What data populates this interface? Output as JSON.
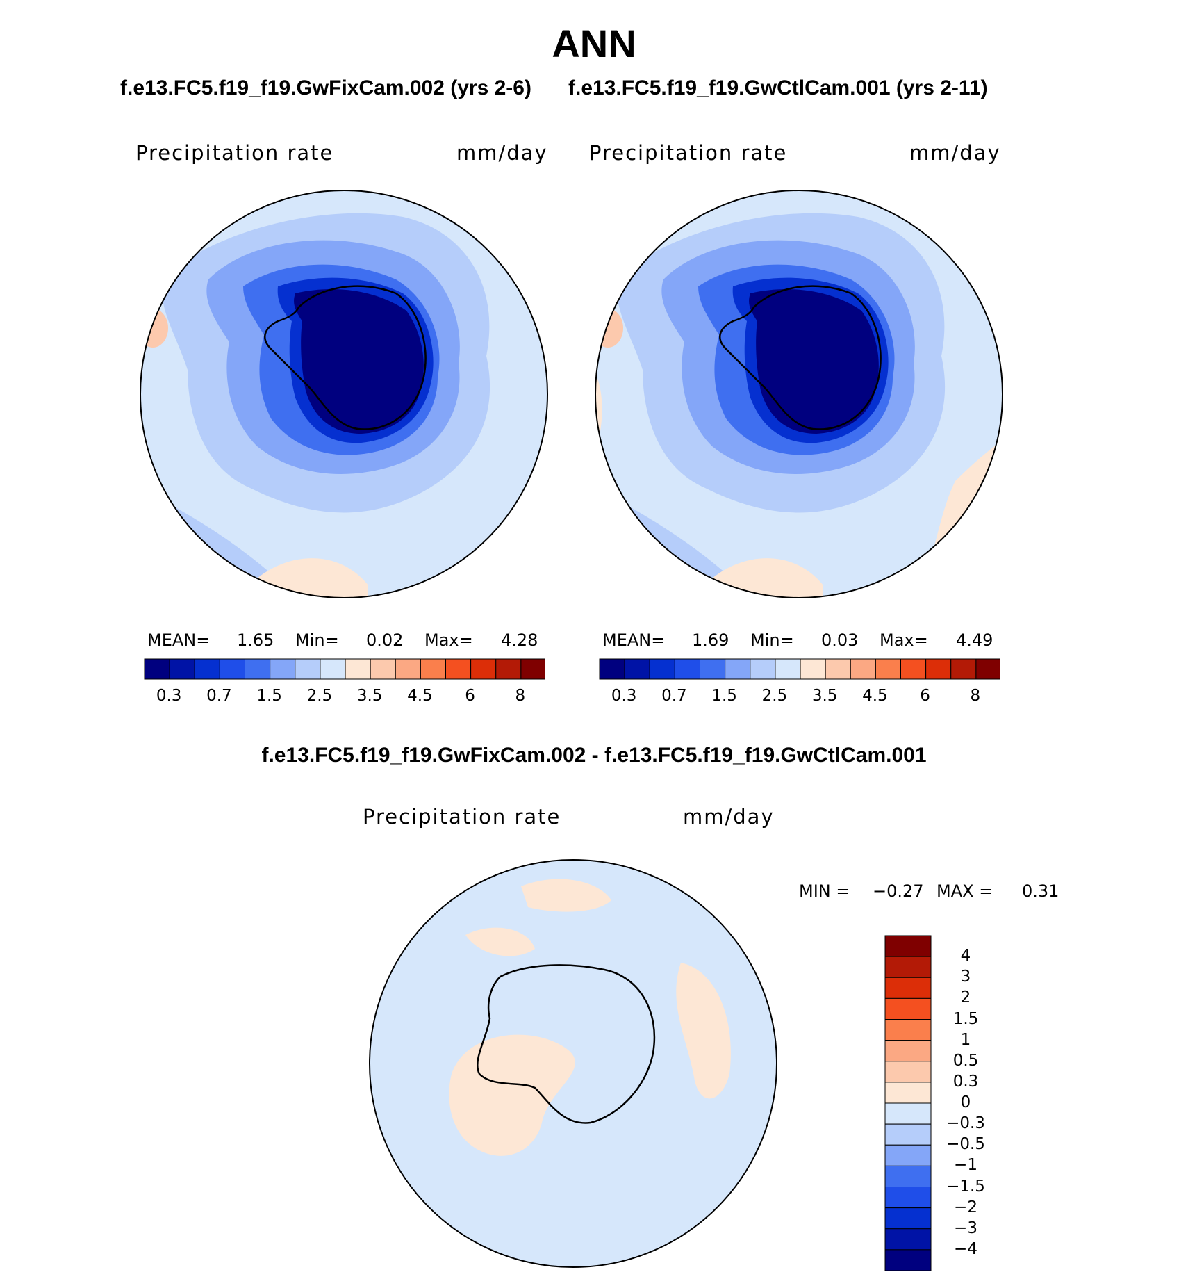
{
  "title": "ANN",
  "subtitle_left": "f.e13.FC5.f19_f19.GwFixCam.002 (yrs 2-6)",
  "subtitle_right": "f.e13.FC5.f19_f19.GwCtlCam.001 (yrs 2-11)",
  "diff_title": "f.e13.FC5.f19_f19.GwFixCam.002 - f.e13.FC5.f19_f19.GwCtlCam.001",
  "panels": [
    {
      "id": "test",
      "variable": "Precipitation rate",
      "units": "mm/day",
      "stats": {
        "mean_label": "MEAN=",
        "mean": "1.65",
        "min_label": "Min=",
        "min": "0.02",
        "max_label": "Max=",
        "max": "4.28"
      }
    },
    {
      "id": "control",
      "variable": "Precipitation rate",
      "units": "mm/day",
      "stats": {
        "mean_label": "MEAN=",
        "mean": "1.69",
        "min_label": "Min=",
        "min": "0.03",
        "max_label": "Max=",
        "max": "4.49"
      }
    },
    {
      "id": "difference",
      "variable": "Precipitation rate",
      "units": "mm/day",
      "stats": {
        "min_label": "MIN =",
        "min": "−0.27",
        "max_label": "MAX =",
        "max": "0.31"
      }
    }
  ],
  "colorbar_abs": {
    "colors": [
      "#00007f",
      "#0013a6",
      "#0530d0",
      "#1f4ee9",
      "#3f6ff0",
      "#84a6f8",
      "#b5cdfa",
      "#d6e7fb",
      "#fde7d5",
      "#fcc9ad",
      "#fba883",
      "#fa7f4c",
      "#f45020",
      "#dc2e08",
      "#b31a06",
      "#7f0000"
    ],
    "tick_labels": [
      "0.3",
      "0.7",
      "1.5",
      "2.5",
      "3.5",
      "4.5",
      "6",
      "8"
    ]
  },
  "colorbar_diff": {
    "colors": [
      "#7f0000",
      "#b31a06",
      "#dc2e08",
      "#f45020",
      "#fa7f4c",
      "#fba883",
      "#fcc9ad",
      "#fde7d5",
      "#d6e7fb",
      "#b5cdfa",
      "#84a6f8",
      "#3f6ff0",
      "#1f4ee9",
      "#0530d0",
      "#0013a6",
      "#00007f"
    ],
    "tick_labels": [
      "4",
      "3",
      "2",
      "1.5",
      "1",
      "0.5",
      "0.3",
      "0",
      "−0.3",
      "−0.5",
      "−1",
      "−1.5",
      "−2",
      "−3",
      "−4"
    ]
  }
}
